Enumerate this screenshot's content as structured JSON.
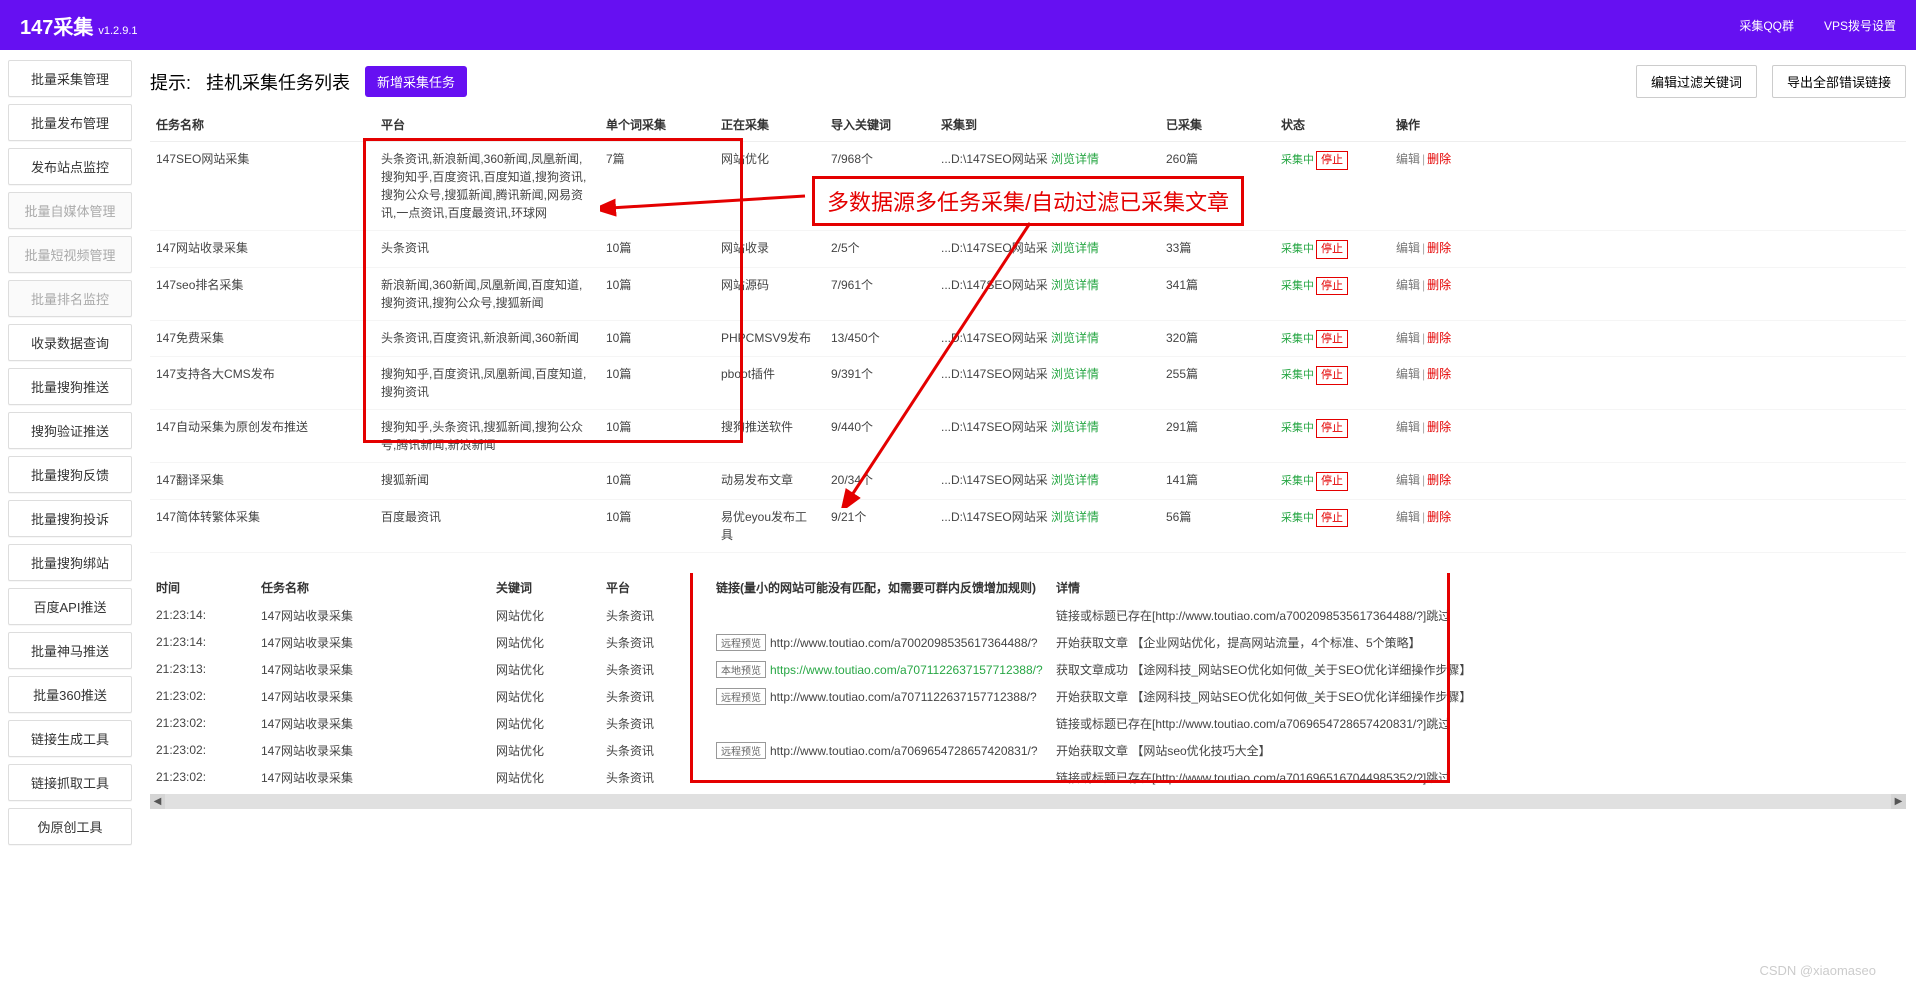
{
  "topbar": {
    "title": "147采集",
    "version": "v1.2.9.1",
    "links": {
      "qq_group": "采集QQ群",
      "vps_dial": "VPS拨号设置"
    }
  },
  "sidebar": {
    "items": [
      {
        "label": "批量采集管理",
        "disabled": false
      },
      {
        "label": "批量发布管理",
        "disabled": false
      },
      {
        "label": "发布站点监控",
        "disabled": false
      },
      {
        "label": "批量自媒体管理",
        "disabled": true
      },
      {
        "label": "批量短视频管理",
        "disabled": true
      },
      {
        "label": "批量排名监控",
        "disabled": true
      },
      {
        "label": "收录数据查询",
        "disabled": false
      },
      {
        "label": "批量搜狗推送",
        "disabled": false
      },
      {
        "label": "搜狗验证推送",
        "disabled": false
      },
      {
        "label": "批量搜狗反馈",
        "disabled": false
      },
      {
        "label": "批量搜狗投诉",
        "disabled": false
      },
      {
        "label": "批量搜狗绑站",
        "disabled": false
      },
      {
        "label": "百度API推送",
        "disabled": false
      },
      {
        "label": "批量神马推送",
        "disabled": false
      },
      {
        "label": "批量360推送",
        "disabled": false
      },
      {
        "label": "链接生成工具",
        "disabled": false
      },
      {
        "label": "链接抓取工具",
        "disabled": false
      },
      {
        "label": "伪原创工具",
        "disabled": false
      }
    ]
  },
  "header": {
    "tip_label": "提示:",
    "tip_text": "挂机采集任务列表",
    "new_task_btn": "新增采集任务",
    "filter_btn": "编辑过滤关键词",
    "export_btn": "导出全部错误链接"
  },
  "task_table": {
    "columns": [
      "任务名称",
      "平台",
      "单个词采集",
      "正在采集",
      "导入关键词",
      "采集到",
      "已采集",
      "状态",
      "操作"
    ],
    "rows": [
      {
        "name": "147SEO网站采集",
        "platform": "头条资讯,新浪新闻,360新闻,凤凰新闻,搜狗知乎,百度资讯,百度知道,搜狗资讯,搜狗公众号,搜狐新闻,腾讯新闻,网易资讯,一点资讯,百度最资讯,环球网",
        "single": "7篇",
        "current": "网站优化",
        "import": "7/968个",
        "saveTo": "...D:\\147SEO网站采",
        "browse": "浏览详情",
        "collected": "260篇",
        "status": "采集中",
        "stop": "停止",
        "edit": "编辑",
        "del": "删除"
      },
      {
        "name": "147网站收录采集",
        "platform": "头条资讯",
        "single": "10篇",
        "current": "网站收录",
        "import": "2/5个",
        "saveTo": "...D:\\147SEO网站采",
        "browse": "浏览详情",
        "collected": "33篇",
        "status": "采集中",
        "stop": "停止",
        "edit": "编辑",
        "del": "删除"
      },
      {
        "name": "147seo排名采集",
        "platform": "新浪新闻,360新闻,凤凰新闻,百度知道,搜狗资讯,搜狗公众号,搜狐新闻",
        "single": "10篇",
        "current": "网站源码",
        "import": "7/961个",
        "saveTo": "...D:\\147SEO网站采",
        "browse": "浏览详情",
        "collected": "341篇",
        "status": "采集中",
        "stop": "停止",
        "edit": "编辑",
        "del": "删除"
      },
      {
        "name": "147免费采集",
        "platform": "头条资讯,百度资讯,新浪新闻,360新闻",
        "single": "10篇",
        "current": "PHPCMSV9发布",
        "import": "13/450个",
        "saveTo": "...D:\\147SEO网站采",
        "browse": "浏览详情",
        "collected": "320篇",
        "status": "采集中",
        "stop": "停止",
        "edit": "编辑",
        "del": "删除"
      },
      {
        "name": "147支持各大CMS发布",
        "platform": "搜狗知乎,百度资讯,凤凰新闻,百度知道,搜狗资讯",
        "single": "10篇",
        "current": "pboot插件",
        "import": "9/391个",
        "saveTo": "...D:\\147SEO网站采",
        "browse": "浏览详情",
        "collected": "255篇",
        "status": "采集中",
        "stop": "停止",
        "edit": "编辑",
        "del": "删除"
      },
      {
        "name": "147自动采集为原创发布推送",
        "platform": "搜狗知乎,头条资讯,搜狐新闻,搜狗公众号,腾讯新闻,新浪新闻",
        "single": "10篇",
        "current": "搜狗推送软件",
        "import": "9/440个",
        "saveTo": "...D:\\147SEO网站采",
        "browse": "浏览详情",
        "collected": "291篇",
        "status": "采集中",
        "stop": "停止",
        "edit": "编辑",
        "del": "删除"
      },
      {
        "name": "147翻译采集",
        "platform": "搜狐新闻",
        "single": "10篇",
        "current": "动易发布文章",
        "import": "20/34个",
        "saveTo": "...D:\\147SEO网站采",
        "browse": "浏览详情",
        "collected": "141篇",
        "status": "采集中",
        "stop": "停止",
        "edit": "编辑",
        "del": "删除"
      },
      {
        "name": "147简体转繁体采集",
        "platform": "百度最资讯",
        "single": "10篇",
        "current": "易优eyou发布工具",
        "import": "9/21个",
        "saveTo": "...D:\\147SEO网站采",
        "browse": "浏览详情",
        "collected": "56篇",
        "status": "采集中",
        "stop": "停止",
        "edit": "编辑",
        "del": "删除"
      }
    ]
  },
  "callout_text": "多数据源多任务采集/自动过滤已采集文章",
  "log_table": {
    "columns": [
      "时间",
      "任务名称",
      "关键词",
      "平台",
      "链接(量小的网站可能没有匹配，如需要可群内反馈增加规则)",
      "详情"
    ],
    "rows": [
      {
        "time": "21:23:14:",
        "task": "147网站收录采集",
        "kw": "网站优化",
        "plat": "头条资讯",
        "badge": "",
        "url": "",
        "detail": "链接或标题已存在[http://www.toutiao.com/a7002098535617364488/?]跳过"
      },
      {
        "time": "21:23:14:",
        "task": "147网站收录采集",
        "kw": "网站优化",
        "plat": "头条资讯",
        "badge": "远程预览",
        "url": "http://www.toutiao.com/a7002098535617364488/?",
        "url_class": "",
        "detail": "开始获取文章 【企业网站优化，提高网站流量，4个标准、5个策略】"
      },
      {
        "time": "21:23:13:",
        "task": "147网站收录采集",
        "kw": "网站优化",
        "plat": "头条资讯",
        "badge": "本地预览",
        "url": "https://www.toutiao.com/a7071122637157712388/?",
        "url_class": "green",
        "detail": "获取文章成功 【途网科技_网站SEO优化如何做_关于SEO优化详细操作步骤】"
      },
      {
        "time": "21:23:02:",
        "task": "147网站收录采集",
        "kw": "网站优化",
        "plat": "头条资讯",
        "badge": "远程预览",
        "url": "http://www.toutiao.com/a7071122637157712388/?",
        "url_class": "",
        "detail": "开始获取文章 【途网科技_网站SEO优化如何做_关于SEO优化详细操作步骤】"
      },
      {
        "time": "21:23:02:",
        "task": "147网站收录采集",
        "kw": "网站优化",
        "plat": "头条资讯",
        "badge": "",
        "url": "",
        "detail": "链接或标题已存在[http://www.toutiao.com/a7069654728657420831/?]跳过"
      },
      {
        "time": "21:23:02:",
        "task": "147网站收录采集",
        "kw": "网站优化",
        "plat": "头条资讯",
        "badge": "远程预览",
        "url": "http://www.toutiao.com/a7069654728657420831/?",
        "url_class": "",
        "detail": "开始获取文章 【网站seo优化技巧大全】"
      },
      {
        "time": "21:23:02:",
        "task": "147网站收录采集",
        "kw": "网站优化",
        "plat": "头条资讯",
        "badge": "",
        "url": "",
        "detail": "链接或标题已存在[http://www.toutiao.com/a7016965167044985352/?]跳过"
      }
    ]
  },
  "watermark": "CSDN @xiaomaseo"
}
